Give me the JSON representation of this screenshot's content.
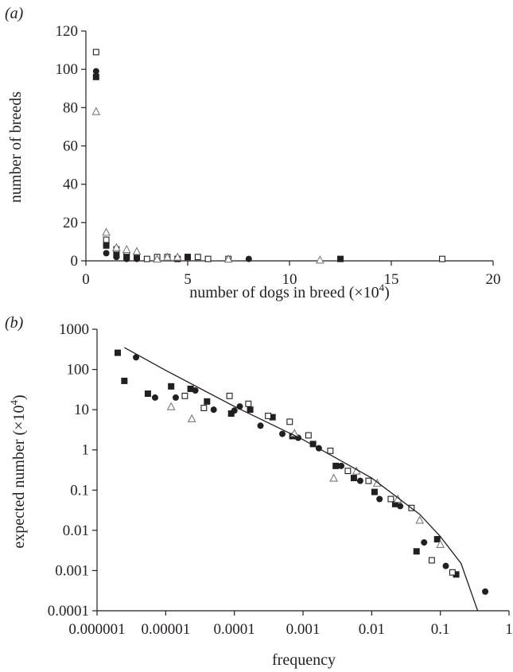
{
  "chart_data": [
    {
      "panel": "(a)",
      "type": "scatter",
      "xlabel": "number of dogs in breed (×10",
      "xlabel_sup": "4",
      "xlabel_tail": ")",
      "ylabel": "number of breeds",
      "xlim": [
        0,
        20
      ],
      "ylim": [
        0,
        120
      ],
      "xticks": [
        "0",
        "5",
        "10",
        "15",
        "20"
      ],
      "yticks": [
        "0",
        "20",
        "40",
        "60",
        "80",
        "100",
        "120"
      ],
      "xtick_values": [
        0,
        5,
        10,
        15,
        20
      ],
      "ytick_values": [
        0,
        20,
        40,
        60,
        80,
        100,
        120
      ],
      "grid": false,
      "series": [
        {
          "marker": "open-square",
          "points": [
            [
              0.5,
              109
            ],
            [
              1,
              11
            ],
            [
              1.5,
              6
            ],
            [
              2,
              3
            ],
            [
              2.5,
              2
            ],
            [
              3,
              1
            ],
            [
              3.5,
              2
            ],
            [
              4,
              2
            ],
            [
              5,
              2
            ],
            [
              5.5,
              2
            ],
            [
              6,
              1
            ],
            [
              7,
              1
            ],
            [
              17.5,
              1
            ]
          ]
        },
        {
          "marker": "filled-circle",
          "points": [
            [
              0.5,
              99
            ],
            [
              1,
              4
            ],
            [
              1.5,
              2
            ],
            [
              2,
              1
            ],
            [
              2.5,
              1
            ],
            [
              5,
              2
            ],
            [
              8,
              1
            ]
          ]
        },
        {
          "marker": "filled-square",
          "points": [
            [
              0.5,
              96
            ],
            [
              1,
              8
            ],
            [
              1.5,
              3
            ],
            [
              2,
              2
            ],
            [
              2.5,
              2
            ],
            [
              4.5,
              1
            ],
            [
              5,
              2
            ],
            [
              12.5,
              1
            ]
          ]
        },
        {
          "marker": "open-triangle",
          "points": [
            [
              0.5,
              78
            ],
            [
              1,
              15
            ],
            [
              1.5,
              7
            ],
            [
              2,
              6
            ],
            [
              2.5,
              5
            ],
            [
              3.5,
              1
            ],
            [
              4,
              2
            ],
            [
              4.5,
              2
            ],
            [
              7,
              1
            ],
            [
              11.5,
              0.5
            ]
          ]
        }
      ]
    },
    {
      "panel": "(b)",
      "type": "scatter",
      "xscale": "log",
      "yscale": "log",
      "xlabel": "frequency",
      "ylabel": "expected number (×10",
      "ylabel_sup": "4",
      "ylabel_tail": ")",
      "xlim": [
        1e-06,
        1
      ],
      "ylim": [
        0.0001,
        1000
      ],
      "xticks": [
        "0.000001",
        "0.00001",
        "0.0001",
        "0.001",
        "0.01",
        "0.1",
        "1"
      ],
      "yticks": [
        "0.0001",
        "0.001",
        "0.01",
        "0.1",
        "1",
        "10",
        "100",
        "1000"
      ],
      "xtick_values": [
        1e-06,
        1e-05,
        0.0001,
        0.001,
        0.01,
        0.1,
        1
      ],
      "ytick_values": [
        0.0001,
        0.001,
        0.01,
        0.1,
        1,
        10,
        100,
        1000
      ],
      "grid": false,
      "series": [
        {
          "marker": "filled-square",
          "points": [
            [
              2e-06,
              260
            ],
            [
              2.5e-06,
              52
            ],
            [
              5.5e-06,
              25
            ],
            [
              1.2e-05,
              38
            ],
            [
              2.3e-05,
              33
            ],
            [
              4e-05,
              16
            ],
            [
              9e-05,
              8
            ],
            [
              0.00017,
              10
            ],
            [
              0.00036,
              6.5
            ],
            [
              0.0007,
              2.2
            ],
            [
              0.0014,
              1.4
            ],
            [
              0.003,
              0.4
            ],
            [
              0.0055,
              0.2
            ],
            [
              0.011,
              0.09
            ],
            [
              0.022,
              0.045
            ],
            [
              0.045,
              0.003
            ],
            [
              0.09,
              0.006
            ],
            [
              0.17,
              0.0008
            ]
          ]
        },
        {
          "marker": "filled-circle",
          "points": [
            [
              3.7e-06,
              200
            ],
            [
              7e-06,
              20
            ],
            [
              1.4e-05,
              20
            ],
            [
              2.7e-05,
              30
            ],
            [
              5e-05,
              10
            ],
            [
              0.0001,
              9.5
            ],
            [
              0.00012,
              12
            ],
            [
              0.00024,
              4
            ],
            [
              0.0005,
              2.5
            ],
            [
              0.00085,
              2
            ],
            [
              0.0017,
              1.1
            ],
            [
              0.0036,
              0.4
            ],
            [
              0.0068,
              0.17
            ],
            [
              0.013,
              0.06
            ],
            [
              0.026,
              0.04
            ],
            [
              0.058,
              0.005
            ],
            [
              0.12,
              0.0013
            ],
            [
              0.45,
              0.0003
            ]
          ]
        },
        {
          "marker": "open-square",
          "points": [
            [
              1.9e-05,
              22
            ],
            [
              3.6e-05,
              11
            ],
            [
              8.5e-05,
              22
            ],
            [
              0.00016,
              14
            ],
            [
              0.00031,
              7
            ],
            [
              0.00064,
              5
            ],
            [
              0.0012,
              2.3
            ],
            [
              0.0025,
              0.95
            ],
            [
              0.0045,
              0.3
            ],
            [
              0.009,
              0.17
            ],
            [
              0.019,
              0.06
            ],
            [
              0.038,
              0.036
            ],
            [
              0.075,
              0.0018
            ],
            [
              0.15,
              0.0009
            ]
          ]
        },
        {
          "marker": "open-triangle",
          "points": [
            [
              1.2e-05,
              12
            ],
            [
              2.4e-05,
              6
            ],
            [
              0.00075,
              2.6
            ],
            [
              0.0028,
              0.2
            ],
            [
              0.006,
              0.3
            ],
            [
              0.012,
              0.15
            ],
            [
              0.024,
              0.06
            ],
            [
              0.05,
              0.018
            ],
            [
              0.1,
              0.0045
            ]
          ]
        },
        {
          "marker": "line",
          "points": [
            [
              2.5e-06,
              350
            ],
            [
              1e-05,
              95
            ],
            [
              0.0001,
              12
            ],
            [
              0.001,
              1.8
            ],
            [
              0.01,
              0.2
            ],
            [
              0.05,
              0.025
            ],
            [
              0.1,
              0.007
            ],
            [
              0.2,
              0.0015
            ],
            [
              0.35,
              0.0001
            ]
          ]
        }
      ]
    }
  ]
}
